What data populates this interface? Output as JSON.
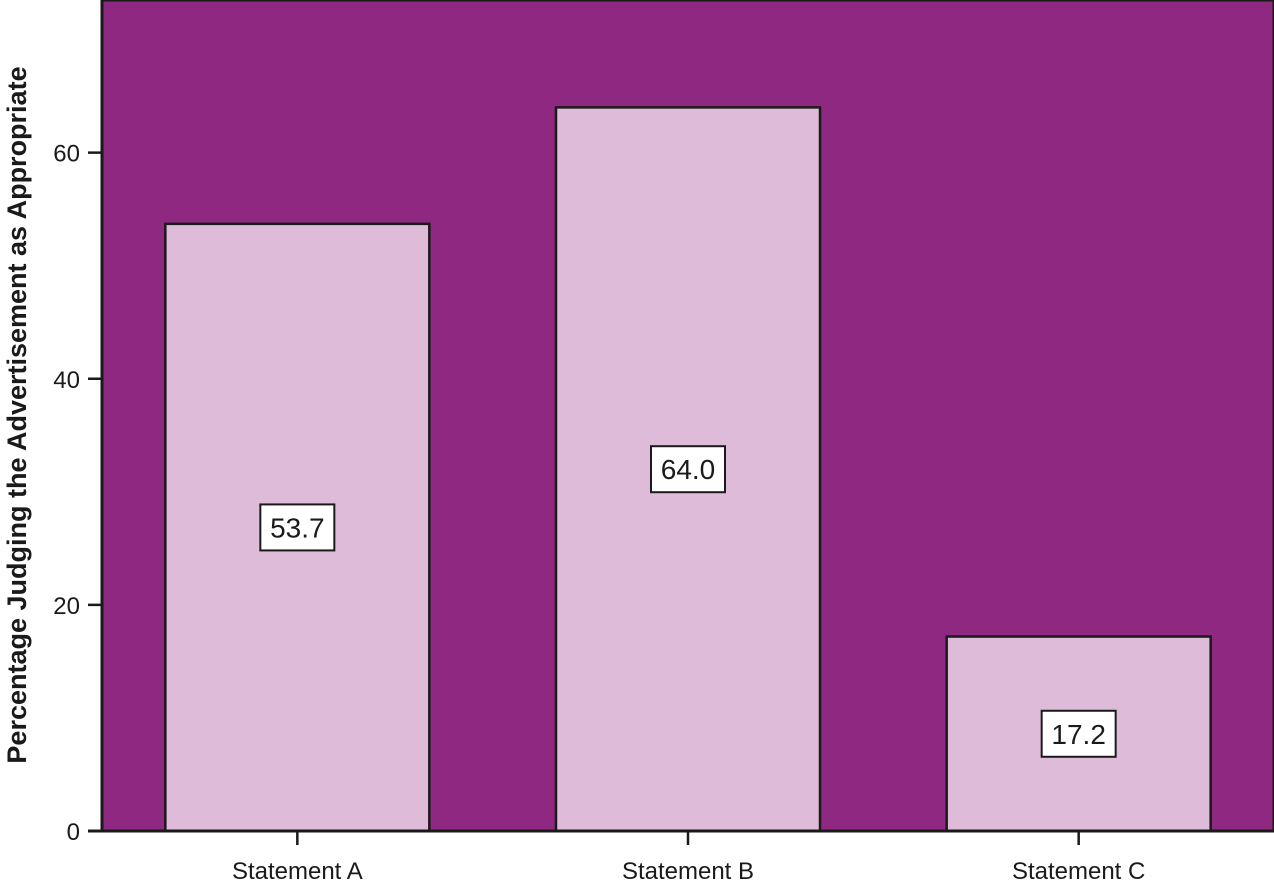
{
  "chart_data": {
    "type": "bar",
    "title": "",
    "xlabel": "",
    "ylabel": "Percentage Judging the Advertisement as Appropriate",
    "categories": [
      "Statement A",
      "Statement B",
      "Statement C"
    ],
    "values": [
      53.7,
      64.0,
      17.2
    ],
    "data_labels": [
      "53.7",
      "64.0",
      "17.2"
    ],
    "ylim": [
      0,
      73.5
    ],
    "yticks": [
      0,
      20,
      40,
      60
    ],
    "ytick_labels": [
      "0",
      "20",
      "40",
      "60"
    ],
    "grid": false,
    "legend": "none",
    "colors": {
      "plot_background": "#8E2880",
      "bar_fill": "#DFBBDA",
      "bar_stroke": "#1a1a1a",
      "label_box_fill": "#ffffff",
      "axis": "#1a1a1a"
    }
  }
}
